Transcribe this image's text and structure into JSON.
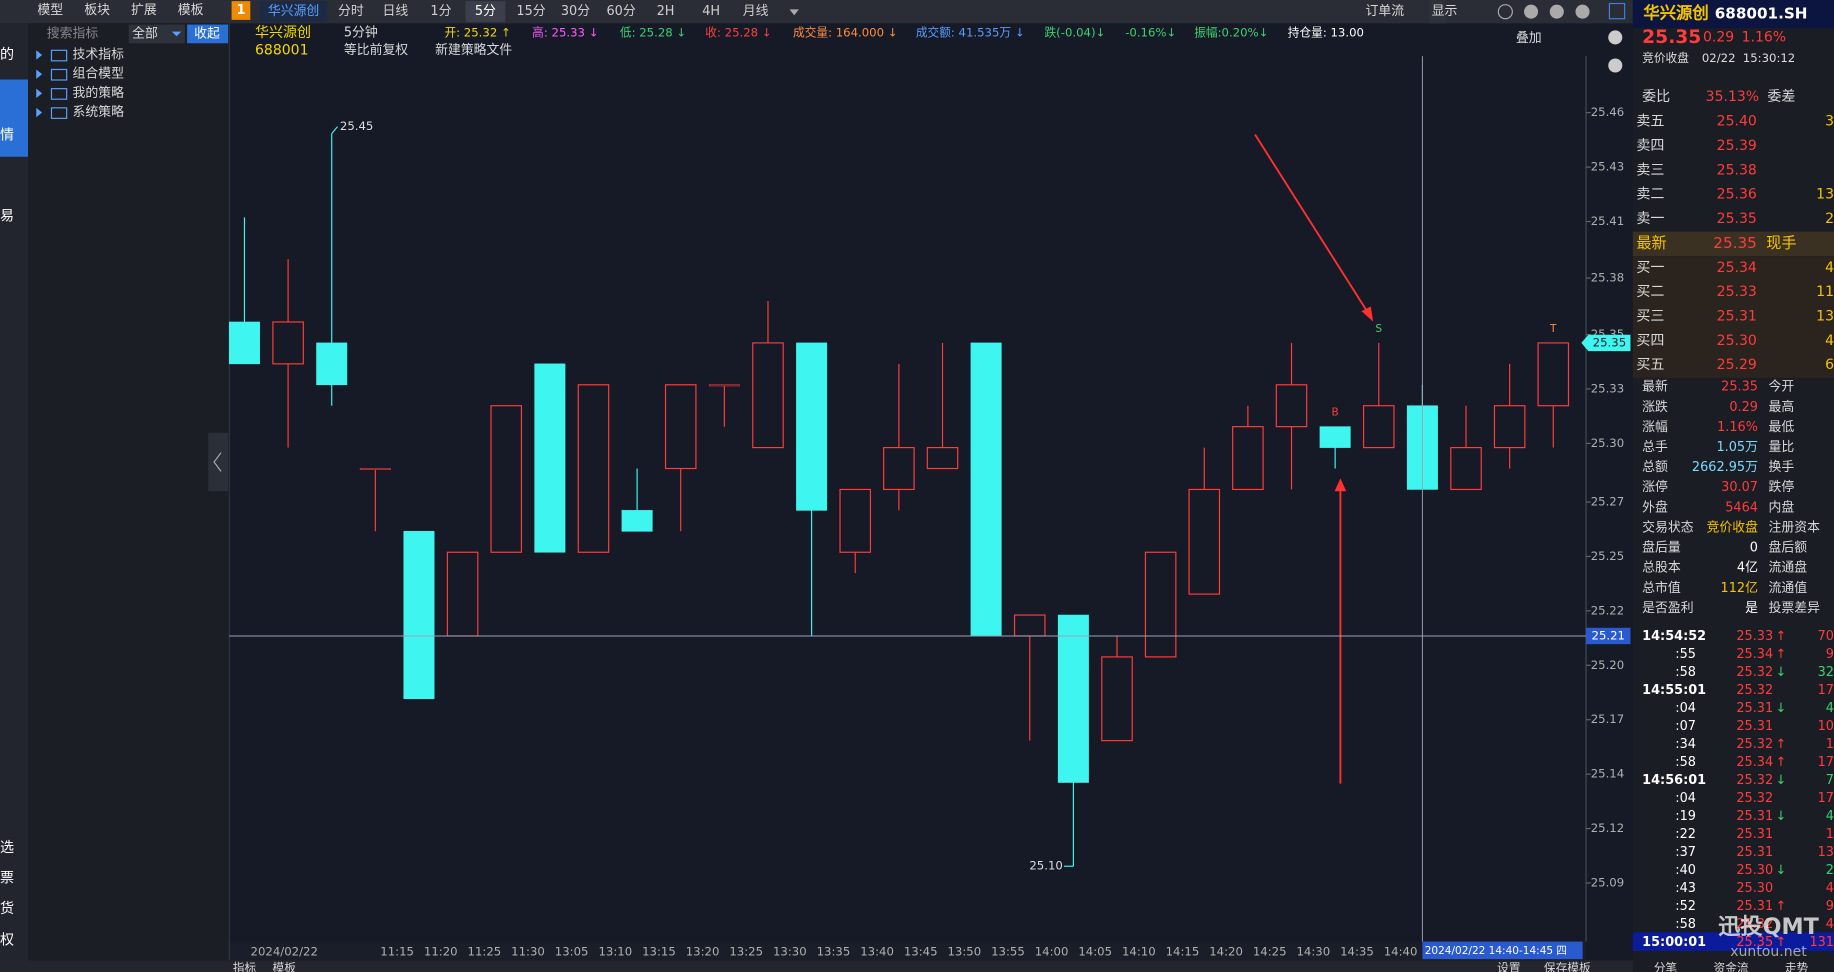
{
  "toolbar": {
    "left_tabs": [
      "模型",
      "板块",
      "扩展",
      "模板"
    ],
    "window_no": "1",
    "stock_tab": "华兴源创",
    "periods": [
      "分时",
      "日线",
      "1分",
      "5分",
      "15分",
      "30分",
      "60分",
      "2H",
      "4H",
      "月线"
    ],
    "order_flow": "订单流",
    "display": "显示"
  },
  "sidebar": {
    "items": [
      "的",
      "情",
      "易",
      "选",
      "票",
      "货",
      "权"
    ]
  },
  "indicator_panel": {
    "search": "搜索指标",
    "filter": "全部",
    "collapse": "收起",
    "tree": [
      "技术指标",
      "组合模型",
      "我的策略",
      "系统策略"
    ],
    "bottom_tabs": [
      "指标",
      "模板"
    ]
  },
  "info_bar": {
    "name": "华兴源创",
    "code": "688001",
    "period": "5分钟",
    "adjust": "等比前复权",
    "new_strategy": "新建策略文件",
    "fields": [
      "开: 25.32 ↑",
      "高: 25.33 ↓",
      "低: 25.28 ↓",
      "收: 25.28 ↓",
      "成交量: 164.000 ↓",
      "成交额: 41.535万 ↓",
      "跌(-0.04)↓",
      "-0.16%↓",
      "振幅:0.20%↓",
      "持仓量: 13.00"
    ],
    "overlay": "叠加"
  },
  "chart_data": {
    "type": "candlestick",
    "categories": [
      null,
      null,
      null,
      "11:15",
      "11:20",
      "11:25",
      "11:30",
      "13:05",
      "13:10",
      "13:15",
      "13:20",
      "13:25",
      "13:30",
      "13:35",
      "13:40",
      "13:45",
      "13:50",
      "13:55",
      "14:00",
      "14:05",
      "14:10",
      "14:15",
      "14:20",
      "14:25",
      "14:30",
      "14:35",
      "14:40",
      null,
      null,
      null,
      null
    ],
    "date_label": "2024/02/22",
    "open": [
      25.36,
      25.34,
      25.35,
      25.29,
      25.26,
      25.21,
      25.25,
      25.34,
      25.25,
      25.27,
      25.29,
      25.33,
      25.3,
      25.35,
      25.25,
      25.28,
      25.29,
      25.35,
      25.21,
      25.22,
      25.16,
      25.2,
      25.23,
      25.28,
      25.31,
      25.31,
      25.3,
      25.32,
      25.28,
      25.3,
      25.32
    ],
    "high": [
      25.41,
      25.39,
      25.45,
      25.29,
      25.26,
      25.25,
      25.32,
      25.34,
      25.33,
      25.29,
      25.33,
      25.33,
      25.37,
      25.35,
      25.28,
      25.34,
      25.35,
      25.35,
      25.22,
      25.22,
      25.21,
      25.25,
      25.3,
      25.32,
      25.35,
      25.31,
      25.35,
      25.33,
      25.32,
      25.34,
      25.35
    ],
    "low": [
      25.34,
      25.3,
      25.32,
      25.26,
      25.18,
      25.21,
      25.25,
      25.25,
      25.25,
      25.26,
      25.26,
      25.31,
      25.3,
      25.21,
      25.24,
      25.27,
      25.29,
      25.21,
      25.16,
      25.1,
      25.16,
      25.2,
      25.23,
      25.28,
      25.28,
      25.29,
      25.3,
      25.28,
      25.28,
      25.29,
      25.3
    ],
    "close": [
      25.34,
      25.36,
      25.33,
      25.29,
      25.18,
      25.25,
      25.32,
      25.25,
      25.33,
      25.26,
      25.33,
      25.33,
      25.35,
      25.27,
      25.28,
      25.3,
      25.3,
      25.21,
      25.22,
      25.14,
      25.2,
      25.25,
      25.28,
      25.31,
      25.33,
      25.3,
      25.32,
      25.28,
      25.3,
      25.32,
      25.35
    ],
    "up_color": "#ff3c3c",
    "down_color": "#3ff5f0",
    "ylim": [
      25.064,
      25.487
    ],
    "yticks": [
      {
        "value": 25.46,
        "label": "25.46"
      },
      {
        "value": 25.434,
        "label": "25.43"
      },
      {
        "value": 25.408,
        "label": "25.41"
      },
      {
        "value": 25.381,
        "label": "25.38"
      },
      {
        "value": 25.354,
        "label": "25.35"
      },
      {
        "value": 25.328,
        "label": "25.33"
      },
      {
        "value": 25.302,
        "label": "25.30"
      },
      {
        "value": 25.274,
        "label": "25.27"
      },
      {
        "value": 25.248,
        "label": "25.25"
      },
      {
        "value": 25.222,
        "label": "25.22"
      },
      {
        "value": 25.196,
        "label": "25.20"
      },
      {
        "value": 25.17,
        "label": "25.17"
      },
      {
        "value": 25.144,
        "label": "25.14"
      },
      {
        "value": 25.118,
        "label": "25.12"
      },
      {
        "value": 25.092,
        "label": "25.09"
      }
    ],
    "grid": false,
    "max_label": "25.45",
    "min_label": "25.10",
    "signals": [
      {
        "label": "B",
        "index": 25,
        "color": "#ff3c3c"
      },
      {
        "label": "S",
        "index": 26,
        "color": "#3bd16f"
      },
      {
        "label": "T",
        "index": 30,
        "color": "#ff8c3c"
      }
    ],
    "last_price": 25.35,
    "crosshair": {
      "price": 25.21,
      "index": 27,
      "time_label": "2024/02/22 14:40-14:45 四"
    }
  },
  "quote": {
    "name": "华兴源创",
    "code": "688001.SH",
    "price": "25.35",
    "change": "0.29",
    "pct": "1.16%",
    "status": "竞价收盘",
    "date": "02/22",
    "time": "15:30:12",
    "ratio_label": "委比",
    "ratio": "35.13%",
    "diff_label": "委差",
    "asks": [
      {
        "label": "卖五",
        "price": "25.40",
        "volume": "3"
      },
      {
        "label": "卖四",
        "price": "25.39"
      },
      {
        "label": "卖三",
        "price": "25.38"
      },
      {
        "label": "卖二",
        "price": "25.36",
        "volume": "13"
      },
      {
        "label": "卖一",
        "price": "25.35",
        "volume": "2"
      }
    ],
    "latest": {
      "label": "最新",
      "price": "25.35",
      "hand": "现手"
    },
    "bids": [
      {
        "label": "买一",
        "price": "25.34",
        "volume": "4"
      },
      {
        "label": "买二",
        "price": "25.33",
        "volume": "11"
      },
      {
        "label": "买三",
        "price": "25.31",
        "volume": "13"
      },
      {
        "label": "买四",
        "price": "25.30",
        "volume": "4"
      },
      {
        "label": "买五",
        "price": "25.29",
        "volume": "6"
      }
    ],
    "stats": [
      {
        "label": "最新",
        "value": "25.35",
        "label2": "今开"
      },
      {
        "label": "涨跌",
        "value": "0.29",
        "label2": "最高"
      },
      {
        "label": "涨幅",
        "value": "1.16%",
        "label2": "最低"
      },
      {
        "label": "总手",
        "value": "1.05万",
        "label2": "量比"
      },
      {
        "label": "总额",
        "value": "2662.95万",
        "label2": "换手"
      },
      {
        "label": "涨停",
        "value": "30.07",
        "label2": "跌停"
      },
      {
        "label": "外盘",
        "value": "5464",
        "label2": "内盘"
      },
      {
        "label": "交易状态",
        "value": "竞价收盘",
        "label2": "注册资本"
      },
      {
        "label": "盘后量",
        "value": "0",
        "label2": "盘后额"
      },
      {
        "label": "总股本",
        "value": "4亿",
        "label2": "流通盘"
      },
      {
        "label": "总市值",
        "value": "112亿",
        "label2": "流通值"
      },
      {
        "label": "是否盈利",
        "value": "是",
        "label2": "投票差异"
      }
    ],
    "ticks": [
      {
        "time": "14:54:52",
        "price": "25.33",
        "arrow": "↑",
        "volume": "70"
      },
      {
        "time": ":55",
        "price": "25.34",
        "arrow": "↑",
        "volume": "9"
      },
      {
        "time": ":58",
        "price": "25.32",
        "arrow": "↓",
        "volume": "32"
      },
      {
        "time": "14:55:01",
        "price": "25.32",
        "volume": "17"
      },
      {
        "time": ":04",
        "price": "25.31",
        "arrow": "↓",
        "volume": "4"
      },
      {
        "time": ":07",
        "price": "25.31",
        "volume": "10"
      },
      {
        "time": ":34",
        "price": "25.32",
        "arrow": "↑",
        "volume": "1"
      },
      {
        "time": ":58",
        "price": "25.34",
        "arrow": "↑",
        "volume": "17"
      },
      {
        "time": "14:56:01",
        "price": "25.32",
        "arrow": "↓",
        "volume": "7"
      },
      {
        "time": ":04",
        "price": "25.32",
        "volume": "17"
      },
      {
        "time": ":19",
        "price": "25.31",
        "arrow": "↓",
        "volume": "4"
      },
      {
        "time": ":22",
        "price": "25.31",
        "volume": "1"
      },
      {
        "time": ":37",
        "price": "25.31",
        "volume": "13"
      },
      {
        "time": ":40",
        "price": "25.30",
        "arrow": "↓",
        "volume": "2"
      },
      {
        "time": ":43",
        "price": "25.30",
        "volume": "4"
      },
      {
        "time": ":52",
        "price": "25.31",
        "arrow": "↑",
        "volume": "9"
      },
      {
        "time": ":58",
        "price": "25.32",
        "volume": "4"
      },
      {
        "time": "15:00:01",
        "price": "25.35",
        "arrow": "↑",
        "volume": "131"
      }
    ],
    "bottom_tabs": [
      "分笔",
      "资金流",
      "走势"
    ]
  },
  "chart_footer": {
    "settings": "设置",
    "save_template": "保存模板"
  },
  "watermark": {
    "brand": "迅投QMT",
    "site": "xuntou.net"
  }
}
